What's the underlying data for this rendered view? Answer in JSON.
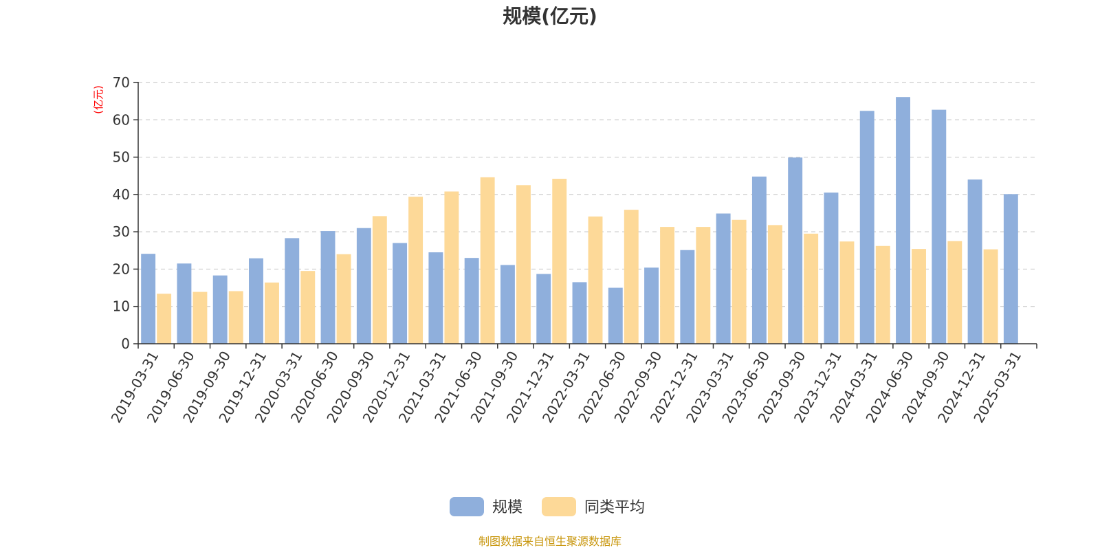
{
  "chart_data": {
    "type": "bar",
    "title": "规模(亿元)",
    "y_unit_label": "(亿元)",
    "ylim": [
      0,
      70
    ],
    "y_ticks": [
      "0",
      "10",
      "20",
      "30",
      "40",
      "50",
      "60",
      "70"
    ],
    "grid": true,
    "legend_position": "bottom-center",
    "categories": [
      "2019-03-31",
      "2019-06-30",
      "2019-09-30",
      "2019-12-31",
      "2020-03-31",
      "2020-06-30",
      "2020-09-30",
      "2020-12-31",
      "2021-03-31",
      "2021-06-30",
      "2021-09-30",
      "2021-12-31",
      "2022-03-31",
      "2022-06-30",
      "2022-09-30",
      "2022-12-31",
      "2023-03-31",
      "2023-06-30",
      "2023-09-30",
      "2023-12-31",
      "2024-03-31",
      "2024-06-30",
      "2024-09-30",
      "2024-12-31",
      "2025-03-31"
    ],
    "series": [
      {
        "name": "规模",
        "color": "#8fafdc",
        "values": [
          24.1,
          21.5,
          18.3,
          22.9,
          28.3,
          30.2,
          31.0,
          27.0,
          24.5,
          23.0,
          21.1,
          18.7,
          16.5,
          15.0,
          20.4,
          25.1,
          34.9,
          44.8,
          49.9,
          40.5,
          62.4,
          66.1,
          62.7,
          44.0,
          40.1
        ]
      },
      {
        "name": "同类平均",
        "color": "#fdd998",
        "values": [
          13.4,
          13.9,
          14.1,
          16.4,
          19.5,
          24.0,
          34.2,
          39.4,
          40.8,
          44.6,
          42.5,
          44.2,
          34.1,
          35.9,
          31.3,
          31.3,
          33.2,
          31.8,
          29.5,
          27.4,
          26.2,
          25.4,
          27.5,
          25.3,
          null
        ]
      }
    ],
    "source_text": "制图数据来自恒生聚源数据库",
    "colors": {
      "axis": "#333333",
      "grid": "#cccccc",
      "unit_label": "#ff0000",
      "source_text": "#c8960c"
    }
  }
}
